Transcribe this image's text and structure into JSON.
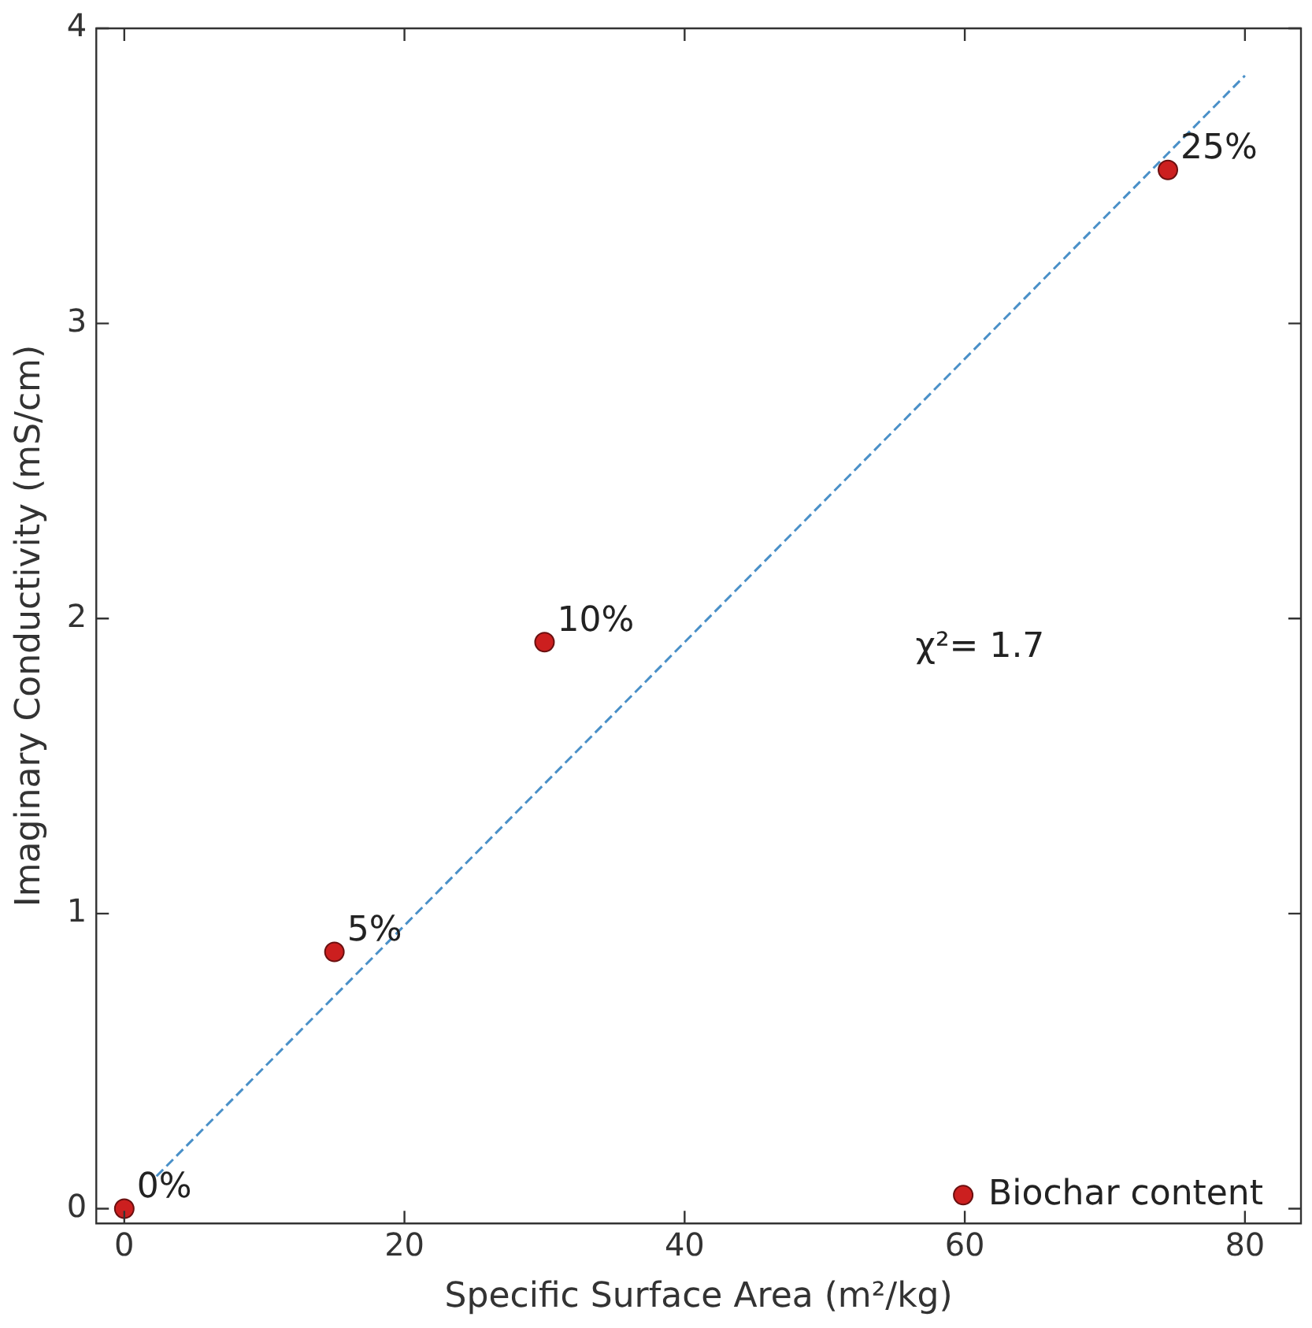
{
  "chart_data": {
    "type": "scatter",
    "xlabel": "Specific Surface Area (m²/kg)",
    "ylabel": "Imaginary Conductivity (mS/cm)",
    "xlim": [
      -2,
      84
    ],
    "ylim": [
      -0.05,
      4
    ],
    "xticks": [
      0,
      20,
      40,
      60,
      80
    ],
    "yticks": [
      0,
      1,
      2,
      3,
      4
    ],
    "series": [
      {
        "name": "Biochar content",
        "color": "#cc1f1f",
        "x": [
          0,
          15,
          30,
          74.5
        ],
        "values": [
          0,
          0.87,
          1.92,
          3.52
        ]
      },
      {
        "type": "line",
        "color": "#4a90c8",
        "line_style": "dashed",
        "marker": "none",
        "x": [
          2.3,
          80
        ],
        "values": [
          0.11,
          3.84
        ]
      }
    ],
    "annotations": [
      {
        "text": "0%",
        "x": 0,
        "y": 0
      },
      {
        "text": "5%",
        "x": 15,
        "y": 0.87
      },
      {
        "text": "10%",
        "x": 30,
        "y": 1.92
      },
      {
        "text": "25%",
        "x": 74.5,
        "y": 3.52
      },
      "χ²= 1.7"
    ],
    "marker": "circle",
    "grid": false,
    "legend": "bottom right"
  }
}
